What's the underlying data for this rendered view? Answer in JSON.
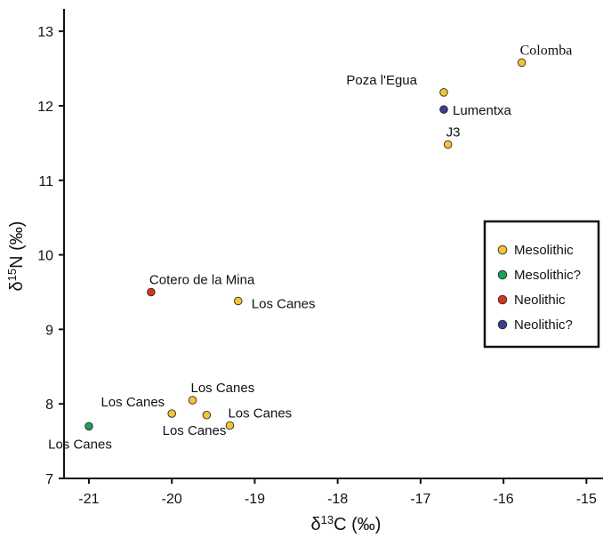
{
  "chart_data": {
    "type": "scatter",
    "title": "",
    "xlabel": "δ13C (‰)",
    "ylabel": "δ15N (‰)",
    "xlabel_parts": {
      "symbol": "δ",
      "sup": "13",
      "rest": "C (‰)"
    },
    "ylabel_parts": {
      "symbol": "δ",
      "sup": "15",
      "rest": "N (‰)"
    },
    "xlim": [
      -21.3,
      -14.8
    ],
    "ylim": [
      7,
      13.3
    ],
    "x_ticks": [
      -21,
      -20,
      -19,
      -18,
      -17,
      -16,
      -15
    ],
    "y_ticks": [
      7,
      8,
      9,
      10,
      11,
      12,
      13
    ],
    "legend": {
      "placement": "right",
      "entries": [
        {
          "name": "Mesolithic",
          "color": "#F5C431"
        },
        {
          "name": "Mesolithic?",
          "color": "#1F9E5A"
        },
        {
          "name": "Neolithic",
          "color": "#D8341C"
        },
        {
          "name": "Neolithic?",
          "color": "#3B3D8F"
        }
      ]
    },
    "points": [
      {
        "label": "Colomba",
        "x": -15.78,
        "y": 12.58,
        "group": "Mesolithic",
        "anchor": "above-right",
        "serif": true
      },
      {
        "label": "Poza l'Egua",
        "x": -16.72,
        "y": 12.18,
        "group": "Mesolithic",
        "anchor": "above-left"
      },
      {
        "label": "Lumentxa",
        "x": -16.72,
        "y": 11.95,
        "group": "Neolithic?",
        "anchor": "right"
      },
      {
        "label": "J3",
        "x": -16.67,
        "y": 11.48,
        "group": "Mesolithic",
        "anchor": "above-right"
      },
      {
        "label": "Cotero de la Mina",
        "x": -20.25,
        "y": 9.5,
        "group": "Neolithic",
        "anchor": "above-right"
      },
      {
        "label": "Los Canes",
        "x": -19.2,
        "y": 9.38,
        "group": "Mesolithic",
        "anchor": "right-below"
      },
      {
        "label": "Los Canes",
        "x": -19.75,
        "y": 8.05,
        "group": "Mesolithic",
        "anchor": "above-right"
      },
      {
        "label": "Los Canes",
        "x": -20.0,
        "y": 7.87,
        "group": "Mesolithic",
        "anchor": "left-above"
      },
      {
        "label": "Los Canes",
        "x": -19.58,
        "y": 7.85,
        "group": "Mesolithic",
        "anchor": "below-left"
      },
      {
        "label": "Los Canes",
        "x": -19.3,
        "y": 7.71,
        "group": "Mesolithic",
        "anchor": "above-right"
      },
      {
        "label": "Los Canes",
        "x": -21.0,
        "y": 7.7,
        "group": "Mesolithic?",
        "anchor": "below"
      }
    ]
  }
}
